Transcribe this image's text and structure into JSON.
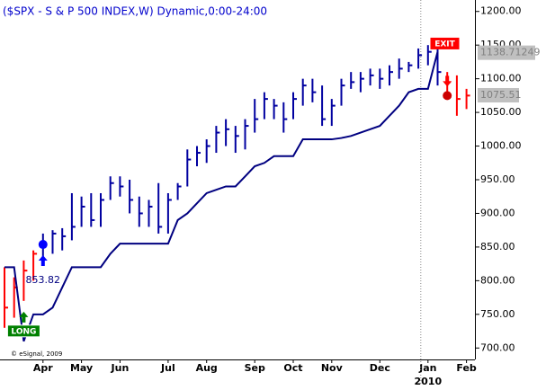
{
  "chart_data": {
    "type": "ohlc",
    "title": "($SPX - S & P 500 INDEX,W) Dynamic,0:00-24:00",
    "categories": [
      null,
      null,
      null,
      null,
      "Apr",
      null,
      null,
      null,
      "May",
      null,
      null,
      null,
      "Jun",
      null,
      null,
      null,
      null,
      "Jul",
      null,
      null,
      null,
      "Aug",
      null,
      null,
      null,
      null,
      "Sep",
      null,
      null,
      null,
      "Oct",
      null,
      null,
      null,
      "Nov",
      null,
      null,
      null,
      null,
      "Dec",
      null,
      null,
      null,
      null,
      "Jan",
      null,
      null,
      null,
      "Feb"
    ],
    "year_label": "2010",
    "high": [
      820,
      805,
      830,
      845,
      870,
      875,
      878,
      930,
      925,
      930,
      930,
      955,
      955,
      950,
      925,
      920,
      945,
      930,
      945,
      995,
      1000,
      1010,
      1030,
      1040,
      1030,
      1040,
      1070,
      1080,
      1070,
      1065,
      1080,
      1100,
      1100,
      1090,
      1070,
      1100,
      1110,
      1110,
      1115,
      1115,
      1120,
      1130,
      1125,
      1145,
      1150,
      1145,
      1110,
      1105,
      1085
    ],
    "low": [
      730,
      745,
      770,
      800,
      825,
      840,
      845,
      860,
      880,
      880,
      880,
      920,
      925,
      900,
      880,
      880,
      870,
      870,
      920,
      940,
      970,
      975,
      990,
      1000,
      990,
      995,
      1020,
      1040,
      1040,
      1020,
      1040,
      1060,
      1065,
      1030,
      1030,
      1060,
      1085,
      1080,
      1090,
      1085,
      1090,
      1100,
      1110,
      1115,
      1120,
      1090,
      1070,
      1045,
      1055
    ],
    "close": [
      760,
      790,
      815,
      840,
      856,
      870,
      866,
      880,
      910,
      890,
      920,
      945,
      940,
      920,
      900,
      910,
      880,
      920,
      940,
      980,
      990,
      1000,
      1020,
      1025,
      1015,
      1030,
      1040,
      1070,
      1060,
      1040,
      1070,
      1090,
      1080,
      1040,
      1060,
      1090,
      1095,
      1100,
      1105,
      1100,
      1110,
      1115,
      1120,
      1135,
      1140,
      1110,
      1095,
      1070,
      1075
    ],
    "stop": [
      820,
      820,
      710,
      750,
      750,
      760,
      790,
      820,
      820,
      820,
      820,
      840,
      855,
      855,
      855,
      855,
      855,
      855,
      890,
      900,
      915,
      930,
      935,
      940,
      940,
      955,
      970,
      975,
      985,
      985,
      985,
      1010,
      1010,
      1010,
      1010,
      1012,
      1015,
      1020,
      1025,
      1030,
      1045,
      1060,
      1080,
      1085,
      1085,
      1140,
      null,
      null,
      null
    ],
    "flat_color": "#ff0000",
    "long_color": "#0000a0",
    "stop_color": "#000080",
    "entry": {
      "label": "LONG",
      "bar": 2,
      "fill_bar": 4,
      "fill_price": 853.82,
      "color": "#008000"
    },
    "exit": {
      "label": "EXIT",
      "bar": 45,
      "fill_bar": 46,
      "fill_price": 1075,
      "color": "#ff0000"
    },
    "stop_price": 1138.71249,
    "last_price": 1075.51,
    "copyright": "© eSignal, 2009",
    "ylim": [
      683,
      1217
    ],
    "yticks": [
      {
        "value": 700,
        "label": "700.00"
      },
      {
        "value": 750,
        "label": "750.00"
      },
      {
        "value": 800,
        "label": "800.00"
      },
      {
        "value": 850,
        "label": "850.00"
      },
      {
        "value": 900,
        "label": "900.00"
      },
      {
        "value": 950,
        "label": "950.00"
      },
      {
        "value": 1000,
        "label": "1000.00"
      },
      {
        "value": 1050,
        "label": "1050.00"
      },
      {
        "value": 1100,
        "label": "1100.00"
      },
      {
        "value": 1150,
        "label": "1150.00"
      },
      {
        "value": 1200,
        "label": "1200.00"
      }
    ]
  }
}
